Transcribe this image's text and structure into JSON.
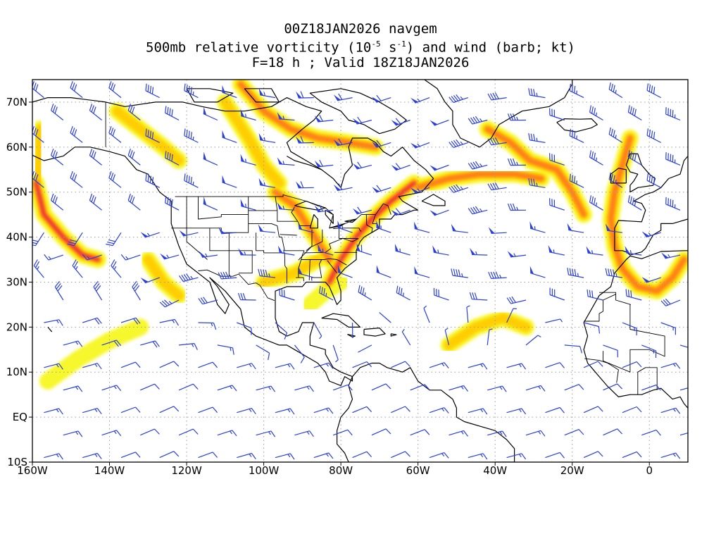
{
  "title": {
    "line1": "00Z18JAN2026 navgem",
    "line2_prefix": "500mb relative vorticity (10",
    "line2_exp1": "-5",
    "line2_mid": " s",
    "line2_exp2": "-1",
    "line2_suffix": ") and wind (barb; kt)",
    "line3": "F=18 h ; Valid 18Z18JAN2026"
  },
  "map": {
    "lon_range": [
      -160,
      10
    ],
    "lat_range": [
      -10,
      75
    ],
    "x_ticks": [
      {
        "lon": -160,
        "label": "160W"
      },
      {
        "lon": -140,
        "label": "140W"
      },
      {
        "lon": -120,
        "label": "120W"
      },
      {
        "lon": -100,
        "label": "100W"
      },
      {
        "lon": -80,
        "label": "80W"
      },
      {
        "lon": -60,
        "label": "60W"
      },
      {
        "lon": -40,
        "label": "40W"
      },
      {
        "lon": -20,
        "label": "20W"
      },
      {
        "lon": 0,
        "label": "0"
      }
    ],
    "y_ticks": [
      {
        "lat": 70,
        "label": "70N"
      },
      {
        "lat": 60,
        "label": "60N"
      },
      {
        "lat": 50,
        "label": "50N"
      },
      {
        "lat": 40,
        "label": "40N"
      },
      {
        "lat": 30,
        "label": "30N"
      },
      {
        "lat": 20,
        "label": "20N"
      },
      {
        "lat": 10,
        "label": "10N"
      },
      {
        "lat": 0,
        "label": "EQ"
      },
      {
        "lat": -10,
        "label": "10S"
      }
    ],
    "gridlines": true,
    "colors": {
      "barb": "#2a3fe0",
      "coast": "#000000",
      "grid": "#9a9a9a",
      "vort_low": "#f7f720",
      "vort_mid": "#ffcc00",
      "vort_high": "#ff7a1a",
      "vort_max": "#e8283c"
    },
    "vorticity_bands": [
      {
        "level": 4,
        "points": [
          [
            -159,
            52
          ],
          [
            -157,
            45
          ],
          [
            -152,
            40
          ],
          [
            -147,
            36
          ],
          [
            -143,
            35
          ]
        ]
      },
      {
        "level": 2,
        "points": [
          [
            -158,
            64
          ],
          [
            -158,
            58
          ],
          [
            -159,
            52
          ]
        ]
      },
      {
        "level": 2,
        "points": [
          [
            -138,
            68
          ],
          [
            -132,
            64
          ],
          [
            -126,
            60
          ],
          [
            -122,
            57
          ]
        ]
      },
      {
        "level": 3,
        "points": [
          [
            -106,
            74
          ],
          [
            -100,
            68
          ],
          [
            -93,
            64
          ],
          [
            -86,
            62
          ],
          [
            -78,
            61
          ],
          [
            -71,
            60
          ]
        ]
      },
      {
        "level": 2,
        "points": [
          [
            -110,
            70
          ],
          [
            -104,
            62
          ],
          [
            -100,
            56
          ],
          [
            -96,
            52
          ]
        ]
      },
      {
        "level": 3,
        "points": [
          [
            -97,
            50
          ],
          [
            -92,
            47
          ],
          [
            -89,
            43
          ],
          [
            -86,
            39
          ],
          [
            -83,
            35
          ]
        ]
      },
      {
        "level": 4,
        "points": [
          [
            -83,
            30
          ],
          [
            -80,
            35
          ],
          [
            -76,
            40
          ],
          [
            -72,
            44
          ],
          [
            -67,
            48
          ],
          [
            -61,
            52
          ]
        ]
      },
      {
        "level": 3,
        "points": [
          [
            -60,
            51
          ],
          [
            -52,
            53
          ],
          [
            -44,
            54
          ],
          [
            -35,
            54
          ],
          [
            -28,
            53
          ]
        ]
      },
      {
        "level": 3,
        "points": [
          [
            -42,
            64
          ],
          [
            -36,
            61
          ],
          [
            -31,
            57
          ],
          [
            -24,
            55
          ],
          [
            -20,
            50
          ],
          [
            -17,
            45
          ]
        ]
      },
      {
        "level": 3,
        "points": [
          [
            -5,
            62
          ],
          [
            -7,
            56
          ],
          [
            -9,
            50
          ],
          [
            -10,
            44
          ],
          [
            -9,
            38
          ],
          [
            -7,
            33
          ],
          [
            -3,
            29
          ],
          [
            2,
            28
          ],
          [
            6,
            31
          ],
          [
            9,
            35
          ]
        ]
      },
      {
        "level": 2,
        "points": [
          [
            -52,
            16
          ],
          [
            -45,
            20
          ],
          [
            -38,
            22
          ],
          [
            -32,
            20
          ]
        ]
      },
      {
        "level": 1,
        "points": [
          [
            -156,
            8
          ],
          [
            -148,
            13
          ],
          [
            -140,
            17
          ],
          [
            -132,
            20
          ]
        ]
      },
      {
        "level": 2,
        "points": [
          [
            -130,
            35
          ],
          [
            -126,
            30
          ],
          [
            -122,
            27
          ]
        ]
      },
      {
        "level": 2,
        "points": [
          [
            -100,
            30
          ],
          [
            -92,
            32
          ],
          [
            -86,
            35
          ]
        ]
      },
      {
        "level": 1,
        "points": [
          [
            -88,
            25
          ],
          [
            -84,
            28
          ],
          [
            -80,
            30
          ]
        ]
      }
    ],
    "barb_grid": {
      "lon_step": 10,
      "lat_step": 5,
      "lon_offset": -2,
      "lat_offset": 1
    },
    "wind_field_description_none": ""
  }
}
